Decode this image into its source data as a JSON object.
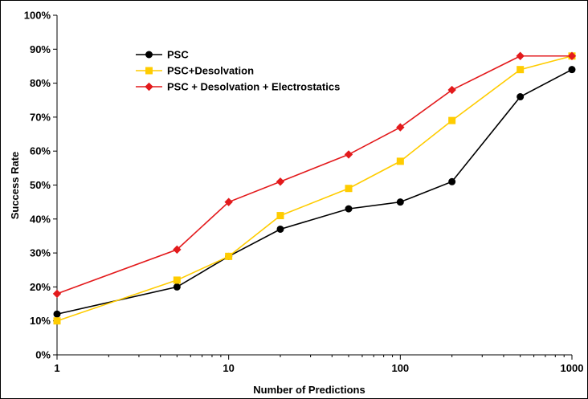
{
  "chart_data": {
    "type": "line",
    "xscale": "log",
    "xlabel": "Number of Predictions",
    "ylabel": "Success Rate",
    "xlim": [
      1,
      1000
    ],
    "ylim": [
      0,
      100
    ],
    "x_ticks": [
      "1",
      "10",
      "100",
      "1000"
    ],
    "y_ticks": [
      "0%",
      "10%",
      "20%",
      "30%",
      "40%",
      "50%",
      "60%",
      "70%",
      "80%",
      "90%",
      "100%"
    ],
    "grid": false,
    "legend_position": "top-left",
    "x": [
      1,
      5,
      10,
      20,
      50,
      100,
      200,
      500,
      1000
    ],
    "series": [
      {
        "name": "PSC",
        "color": "#000000",
        "marker": "circle",
        "values": [
          12,
          20,
          29,
          37,
          43,
          45,
          51,
          76,
          84
        ]
      },
      {
        "name": "PSC+Desolvation",
        "color": "#FFCC00",
        "marker": "square",
        "values": [
          10,
          22,
          29,
          41,
          49,
          57,
          69,
          84,
          88
        ]
      },
      {
        "name": "PSC + Desolvation + Electrostatics",
        "color": "#E31A1C",
        "marker": "diamond",
        "values": [
          18,
          31,
          45,
          51,
          59,
          67,
          78,
          88,
          88
        ]
      }
    ]
  }
}
